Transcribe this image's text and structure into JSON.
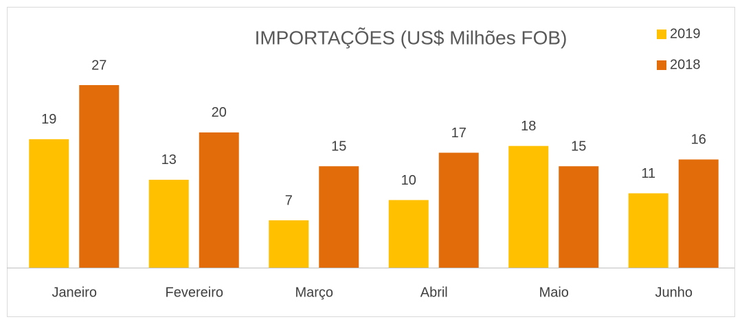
{
  "chart_data": {
    "type": "bar",
    "title": "IMPORTAÇÕES (US$ Milhões FOB)",
    "categories": [
      "Janeiro",
      "Fevereiro",
      "Março",
      "Abril",
      "Maio",
      "Junho"
    ],
    "series": [
      {
        "name": "2019",
        "color": "#ffc000",
        "values": [
          19,
          13,
          7,
          10,
          18,
          11
        ]
      },
      {
        "name": "2018",
        "color": "#e36c0a",
        "values": [
          27,
          20,
          15,
          17,
          15,
          16
        ]
      }
    ]
  }
}
